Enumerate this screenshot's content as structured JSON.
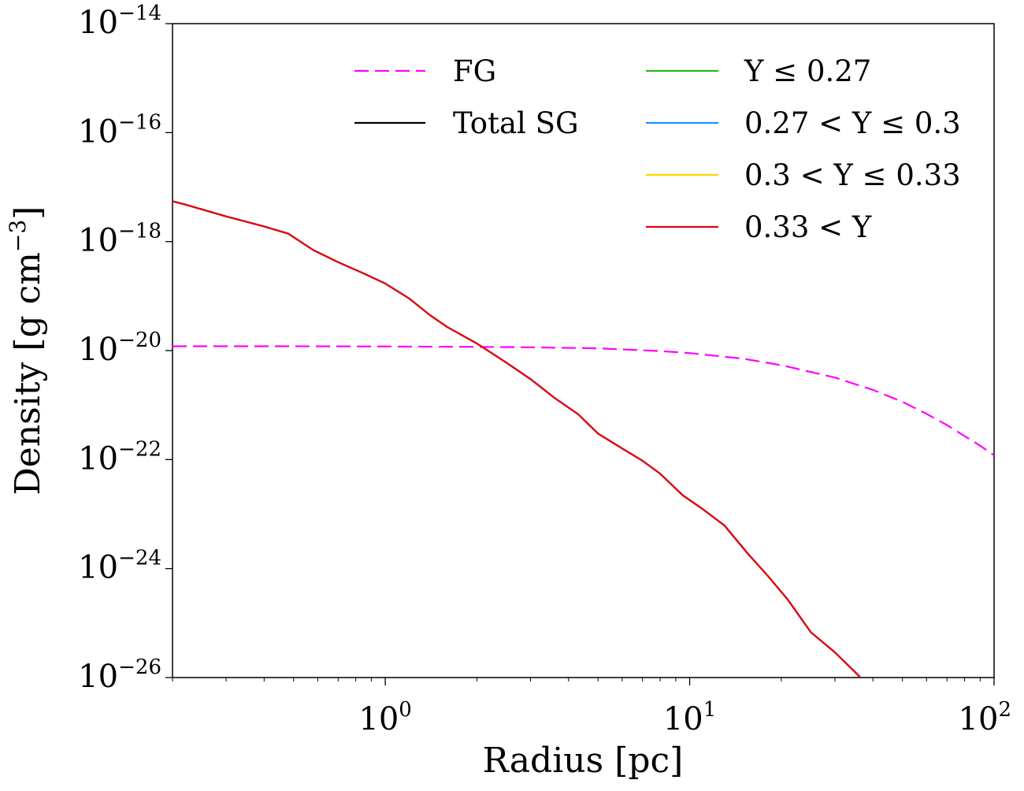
{
  "chart_data": {
    "type": "line",
    "title": "",
    "xlabel": "Radius [pc]",
    "ylabel": {
      "main": "Density [g cm",
      "sup": "−3",
      "close": "]"
    },
    "x_scale": "log",
    "y_scale": "log",
    "xlim": [
      0.2,
      100
    ],
    "ylim": [
      1e-26,
      1e-14
    ],
    "x_ticks": [
      {
        "value": 1,
        "base": "10",
        "exp": "0"
      },
      {
        "value": 10,
        "base": "10",
        "exp": "1"
      },
      {
        "value": 100,
        "base": "10",
        "exp": "2"
      }
    ],
    "y_ticks": [
      {
        "value": 1e-14,
        "base": "10",
        "exp": "−14"
      },
      {
        "value": 1e-16,
        "base": "10",
        "exp": "−16"
      },
      {
        "value": 1e-18,
        "base": "10",
        "exp": "−18"
      },
      {
        "value": 1e-20,
        "base": "10",
        "exp": "−20"
      },
      {
        "value": 1e-22,
        "base": "10",
        "exp": "−22"
      },
      {
        "value": 1e-24,
        "base": "10",
        "exp": "−24"
      },
      {
        "value": 1e-26,
        "base": "10",
        "exp": "−26"
      }
    ],
    "grid": false,
    "legend_position": "top-right",
    "series": [
      {
        "name": "FG",
        "color": "#ff00ff",
        "dash": "dashed",
        "points": [
          [
            0.2,
            1.2e-20
          ],
          [
            0.5,
            1.2e-20
          ],
          [
            1,
            1.19e-20
          ],
          [
            2,
            1.17e-20
          ],
          [
            3,
            1.15e-20
          ],
          [
            5,
            1.1e-20
          ],
          [
            8,
            9.8e-21
          ],
          [
            10,
            9e-21
          ],
          [
            15,
            7.1e-21
          ],
          [
            20,
            5.4e-21
          ],
          [
            30,
            3.2e-21
          ],
          [
            40,
            1.9e-21
          ],
          [
            50,
            1.15e-21
          ],
          [
            60,
            6.9e-22
          ],
          [
            70,
            4.3e-22
          ],
          [
            80,
            2.7e-22
          ],
          [
            90,
            1.8e-22
          ],
          [
            100,
            1.2e-22
          ]
        ]
      },
      {
        "name": "Total SG",
        "color": "#000000",
        "dash": "solid",
        "points": [
          [
            0.2,
            5.5e-18
          ],
          [
            0.22,
            4.8e-18
          ],
          [
            0.3,
            2.9e-18
          ],
          [
            0.4,
            1.9e-18
          ],
          [
            0.48,
            1.4e-18
          ],
          [
            0.58,
            7e-19
          ],
          [
            0.7,
            4.2e-19
          ],
          [
            0.85,
            2.6e-19
          ],
          [
            1.0,
            1.7e-19
          ],
          [
            1.2,
            9e-20
          ],
          [
            1.4,
            4.5e-20
          ],
          [
            1.6,
            2.7e-20
          ],
          [
            2.0,
            1.35e-20
          ],
          [
            2.5,
            6e-21
          ],
          [
            3.0,
            3e-21
          ],
          [
            3.6,
            1.35e-21
          ],
          [
            4.3,
            6.8e-22
          ],
          [
            5.0,
            3e-22
          ],
          [
            6.0,
            1.6e-22
          ],
          [
            7.0,
            9.5e-23
          ],
          [
            8.0,
            5.5e-23
          ],
          [
            9.5,
            2.2e-23
          ],
          [
            11,
            1.25e-23
          ],
          [
            13,
            6.2e-24
          ],
          [
            15.5,
            1.9e-24
          ],
          [
            18,
            7.5e-25
          ],
          [
            21,
            2.7e-25
          ],
          [
            25,
            6.8e-26
          ],
          [
            30,
            2.9e-26
          ],
          [
            35,
            1.25e-26
          ],
          [
            41,
            5e-27
          ]
        ]
      },
      {
        "name": "Y ≤ 0.27",
        "color": "#22bb22",
        "dash": "solid",
        "points": []
      },
      {
        "name": "0.27 < Y ≤ 0.3",
        "color": "#1e90ff",
        "dash": "solid",
        "points": []
      },
      {
        "name": "0.3 < Y ≤ 0.33",
        "color": "#ffd700",
        "dash": "solid",
        "points": []
      },
      {
        "name": "0.33 < Y",
        "color": "#e8000b",
        "dash": "solid",
        "points": [
          [
            0.2,
            5.5e-18
          ],
          [
            0.22,
            4.8e-18
          ],
          [
            0.3,
            2.9e-18
          ],
          [
            0.4,
            1.9e-18
          ],
          [
            0.48,
            1.4e-18
          ],
          [
            0.58,
            7e-19
          ],
          [
            0.7,
            4.2e-19
          ],
          [
            0.85,
            2.6e-19
          ],
          [
            1.0,
            1.7e-19
          ],
          [
            1.2,
            9e-20
          ],
          [
            1.4,
            4.5e-20
          ],
          [
            1.6,
            2.7e-20
          ],
          [
            2.0,
            1.35e-20
          ],
          [
            2.5,
            6e-21
          ],
          [
            3.0,
            3e-21
          ],
          [
            3.6,
            1.35e-21
          ],
          [
            4.3,
            6.8e-22
          ],
          [
            5.0,
            3e-22
          ],
          [
            6.0,
            1.6e-22
          ],
          [
            7.0,
            9.5e-23
          ],
          [
            8.0,
            5.5e-23
          ],
          [
            9.5,
            2.2e-23
          ],
          [
            11,
            1.25e-23
          ],
          [
            13,
            6.2e-24
          ],
          [
            15.5,
            1.9e-24
          ],
          [
            18,
            7.5e-25
          ],
          [
            21,
            2.7e-25
          ],
          [
            25,
            6.8e-26
          ],
          [
            30,
            2.9e-26
          ],
          [
            35,
            1.25e-26
          ],
          [
            41,
            5e-27
          ]
        ]
      }
    ]
  }
}
